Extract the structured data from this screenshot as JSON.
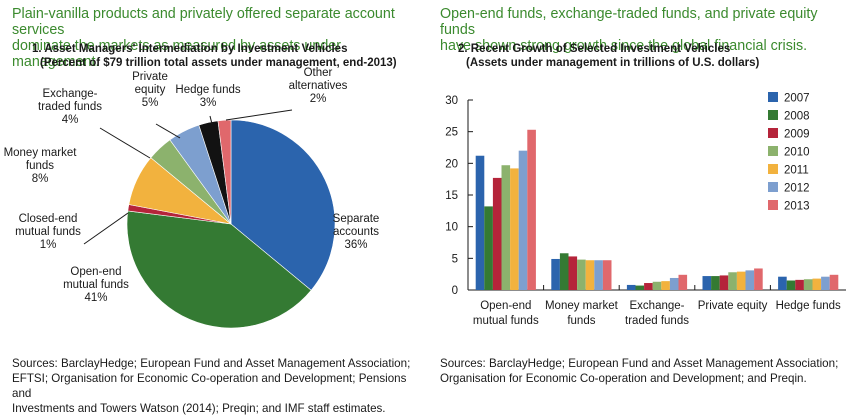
{
  "left": {
    "headline_line1": "Plain-vanilla products and privately offered separate account services",
    "headline_line2": "dominate the markets as measured by assets under management.",
    "title_line1": "1. Asset Managers' Intermediation by Investment Vehicles",
    "title_line2": "(Percent of $79 trillion total assets under management, end-2013)",
    "source_line1": "Sources: BarclayHedge; European Fund and Asset Management Association;",
    "source_line2": "EFTSI; Organisation for Economic Co-operation and Development; Pensions and",
    "source_line3": "Investments and Towers Watson (2014); Preqin; and IMF staff estimates."
  },
  "right": {
    "headline_line1": "Open-end funds, exchange-traded funds, and private equity funds",
    "headline_line2": "have shown strong growth since the global financial crisis.",
    "title_line1": "2. Recent Growth of Selected Investment Vehicles",
    "title_line2": "(Assets under management in trillions of U.S. dollars)",
    "source_line1": "Sources: BarclayHedge; European Fund and Asset Management Association;",
    "source_line2": "Organisation for Economic Co-operation and Development; and Preqin."
  },
  "chart_data": [
    {
      "type": "pie",
      "title": "1. Asset Managers' Intermediation by Investment Vehicles",
      "subtitle": "(Percent of $79 trillion total assets under management, end-2013)",
      "slices": [
        {
          "label": [
            "Separate",
            "accounts"
          ],
          "pct": "36%",
          "value": 36,
          "color": "#2b64ad"
        },
        {
          "label": [
            "Open-end",
            "mutual funds"
          ],
          "pct": "41%",
          "value": 41,
          "color": "#347a33"
        },
        {
          "label": [
            "Closed-end",
            "mutual funds"
          ],
          "pct": "1%",
          "value": 1,
          "color": "#b5243a"
        },
        {
          "label": [
            "Money market",
            "funds"
          ],
          "pct": "8%",
          "value": 8,
          "color": "#f2b23e"
        },
        {
          "label": [
            "Exchange-",
            "traded funds"
          ],
          "pct": "4%",
          "value": 4,
          "color": "#8cb26d"
        },
        {
          "label": [
            "Private",
            "equity"
          ],
          "pct": "5%",
          "value": 5,
          "color": "#7d9fcf"
        },
        {
          "label": [
            "Hedge funds"
          ],
          "pct": "3%",
          "value": 3,
          "color": "#121212"
        },
        {
          "label": [
            "Other",
            "alternatives"
          ],
          "pct": "2%",
          "value": 2,
          "color": "#e0686c"
        }
      ]
    },
    {
      "type": "bar",
      "title": "2. Recent Growth of Selected Investment Vehicles",
      "subtitle": "(Assets under management in trillions of U.S. dollars)",
      "categories": [
        [
          "Open-end",
          "mutual funds"
        ],
        [
          "Money market",
          "funds"
        ],
        [
          "Exchange-",
          "traded funds"
        ],
        [
          "Private equity"
        ],
        [
          "Hedge funds"
        ]
      ],
      "ylim": [
        0,
        30
      ],
      "yticks": [
        0,
        5,
        10,
        15,
        20,
        25,
        30
      ],
      "legend_position": "top-right",
      "series": [
        {
          "name": "2007",
          "color": "#2b64ad",
          "values": [
            21.2,
            4.9,
            0.8,
            2.2,
            2.1
          ]
        },
        {
          "name": "2008",
          "color": "#347a33",
          "values": [
            13.2,
            5.8,
            0.7,
            2.2,
            1.5
          ]
        },
        {
          "name": "2009",
          "color": "#b5243a",
          "values": [
            17.7,
            5.3,
            1.1,
            2.3,
            1.6
          ]
        },
        {
          "name": "2010",
          "color": "#8cb26d",
          "values": [
            19.7,
            4.8,
            1.3,
            2.8,
            1.7
          ]
        },
        {
          "name": "2011",
          "color": "#f2b23e",
          "values": [
            19.2,
            4.7,
            1.4,
            2.9,
            1.8
          ]
        },
        {
          "name": "2012",
          "color": "#7d9fcf",
          "values": [
            22.0,
            4.7,
            1.9,
            3.1,
            2.1
          ]
        },
        {
          "name": "2013",
          "color": "#e0686c",
          "values": [
            25.3,
            4.7,
            2.4,
            3.4,
            2.4
          ]
        }
      ]
    }
  ]
}
